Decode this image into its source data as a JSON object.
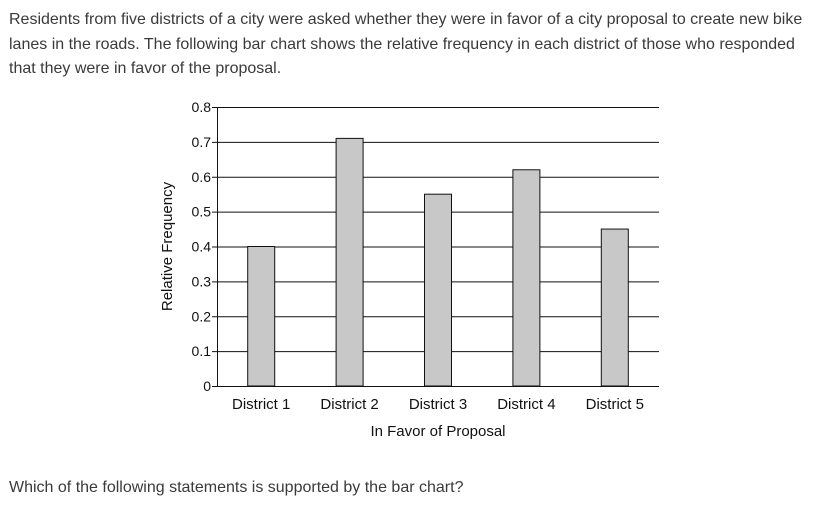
{
  "question": {
    "intro": "Residents from five districts of a city were asked whether they were in favor of a city proposal to create new bike lanes in the roads. The following bar chart shows the relative frequency in each district of those who responded that they were in favor of the proposal.",
    "prompt": "Which of the following statements is supported by the bar chart?"
  },
  "chart_data": {
    "type": "bar",
    "title": "",
    "xlabel": "In Favor of Proposal",
    "ylabel": "Relative Frequency",
    "categories": [
      "District 1",
      "District 2",
      "District 3",
      "District 4",
      "District 5"
    ],
    "values": [
      0.4,
      0.71,
      0.55,
      0.62,
      0.45
    ],
    "ylim": [
      0,
      0.8
    ],
    "yticks": [
      "0",
      "0.1",
      "0.2",
      "0.3",
      "0.4",
      "0.5",
      "0.6",
      "0.7",
      "0.8"
    ],
    "grid": true,
    "bar_color": "#c8c8c8",
    "bar_edge_color": "#111111"
  }
}
